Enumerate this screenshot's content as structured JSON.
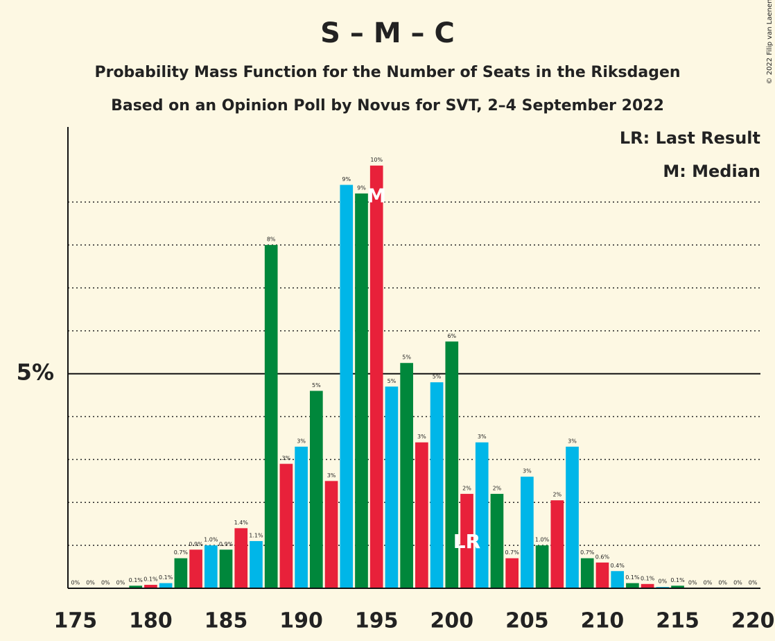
{
  "chart_data": {
    "type": "bar",
    "title": "S – M – C",
    "subtitle": "Probability Mass Function for the Number of Seats in the Riksdagen",
    "subtitle2": "Based on an Opinion Poll by Novus for SVT, 2–4 September 2022",
    "copyright": "© 2022 Filip van Laenen",
    "legend": [
      "LR: Last Result",
      "M: Median"
    ],
    "x": [
      175,
      176,
      177,
      178,
      179,
      180,
      181,
      182,
      183,
      184,
      185,
      186,
      187,
      188,
      189,
      190,
      191,
      192,
      193,
      194,
      195,
      196,
      197,
      198,
      199,
      200,
      201,
      202,
      203,
      204,
      205,
      206,
      207,
      208,
      209,
      210,
      211,
      212,
      213,
      214,
      215,
      216,
      217,
      218,
      219,
      220
    ],
    "values": [
      0,
      0,
      0,
      0,
      0.06,
      0.08,
      0.12,
      0.7,
      0.9,
      1.0,
      0.9,
      1.4,
      1.1,
      8.0,
      2.9,
      3.3,
      4.6,
      2.5,
      9.4,
      9.2,
      9.85,
      4.7,
      5.25,
      3.4,
      4.8,
      5.75,
      2.2,
      3.4,
      2.2,
      0.7,
      2.6,
      1.0,
      2.05,
      3.3,
      0.7,
      0.6,
      0.4,
      0.12,
      0.1,
      0.03,
      0.06,
      0,
      0,
      0,
      0,
      0
    ],
    "value_labels": [
      "0%",
      "0%",
      "0%",
      "0%",
      "0.1%",
      "0.1%",
      "0.1%",
      "0.7%",
      "0.9%",
      "1.0%",
      "0.9%",
      "1.4%",
      "1.1%",
      "8%",
      "3%",
      "3%",
      "5%",
      "3%",
      "9%",
      "9%",
      "10%",
      "5%",
      "5%",
      "3%",
      "5%",
      "6%",
      "2%",
      "3%",
      "2%",
      "0.7%",
      "3%",
      "1.0%",
      "2%",
      "3%",
      "0.7%",
      "0.6%",
      "0.4%",
      "0.1%",
      "0.1%",
      "0%",
      "0.1%",
      "0%",
      "0%",
      "0%",
      "0%",
      "0%"
    ],
    "colors": [
      "#e8213a",
      "#00b6e8",
      "#00873b"
    ],
    "annotations": [
      {
        "text": "M",
        "x": 195
      },
      {
        "text": "LR",
        "x": 201
      }
    ],
    "xlim": [
      174.5,
      220.5
    ],
    "xticks": [
      175,
      180,
      185,
      190,
      195,
      200,
      205,
      210,
      215,
      220
    ],
    "ylim": [
      0,
      10.75
    ],
    "yticks": [
      {
        "value": 5,
        "label": "5%"
      }
    ],
    "minor_yticks": [
      1,
      2,
      3,
      4,
      6,
      7,
      8,
      9
    ]
  }
}
